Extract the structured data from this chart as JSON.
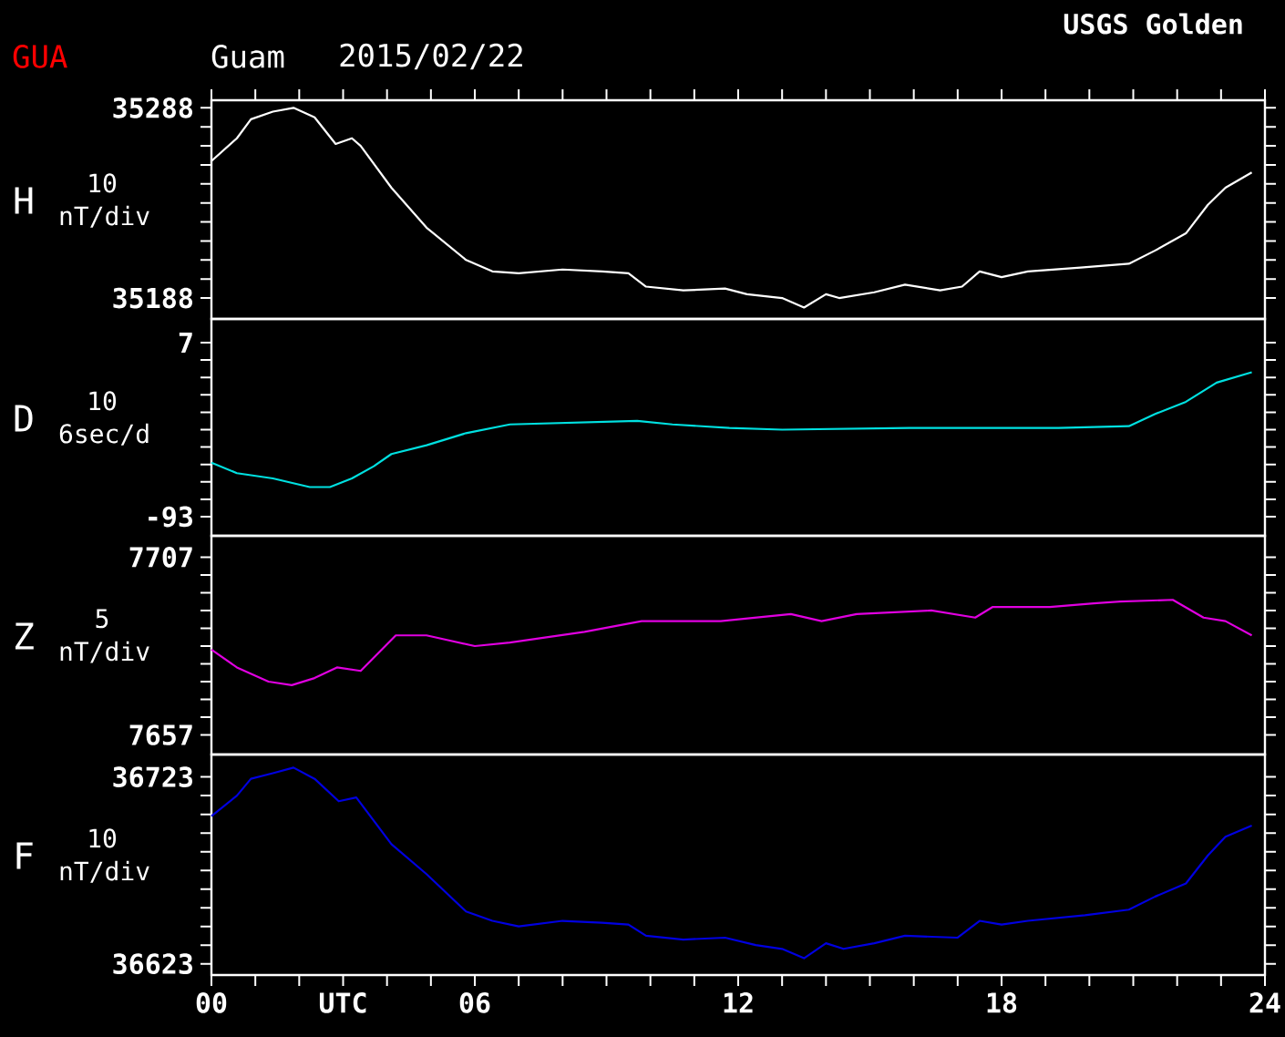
{
  "chart_data": [
    {
      "type": "other",
      "title": "Guam",
      "subtitle": "2015/02/22",
      "annotations": [
        "GUA",
        "USGS Golden"
      ]
    },
    {
      "type": "line",
      "title": "H",
      "ylabel": "10 nT/div",
      "xlim": [
        0,
        24
      ],
      "ylim": [
        35177,
        35292
      ],
      "tick_labels": "y",
      "xticks": [
        {
          "value": 0,
          "label": null
        },
        {
          "value": 1,
          "label": null
        },
        {
          "value": 2,
          "label": null
        },
        {
          "value": 3,
          "label": null
        },
        {
          "value": 4,
          "label": null
        },
        {
          "value": 5,
          "label": null
        },
        {
          "value": 6,
          "label": null
        },
        {
          "value": 7,
          "label": null
        },
        {
          "value": 8,
          "label": null
        },
        {
          "value": 9,
          "label": null
        },
        {
          "value": 10,
          "label": null
        },
        {
          "value": 11,
          "label": null
        },
        {
          "value": 12,
          "label": null
        },
        {
          "value": 13,
          "label": null
        },
        {
          "value": 14,
          "label": null
        },
        {
          "value": 15,
          "label": null
        },
        {
          "value": 16,
          "label": null
        },
        {
          "value": 17,
          "label": null
        },
        {
          "value": 18,
          "label": null
        },
        {
          "value": 19,
          "label": null
        },
        {
          "value": 20,
          "label": null
        },
        {
          "value": 21,
          "label": null
        },
        {
          "value": 22,
          "label": null
        },
        {
          "value": 23,
          "label": null
        },
        {
          "value": 24,
          "label": null
        }
      ],
      "yticks": [
        35188,
        {
          "value": 35198,
          "label": null
        },
        {
          "value": 35208,
          "label": null
        },
        {
          "value": 35218,
          "label": null
        },
        {
          "value": 35228,
          "label": null
        },
        {
          "value": 35238,
          "label": null
        },
        {
          "value": 35248,
          "label": null
        },
        {
          "value": 35258,
          "label": null
        },
        {
          "value": 35268,
          "label": null
        },
        {
          "value": 35278,
          "label": null
        },
        35288
      ],
      "x": [
        0,
        0.58,
        0.9,
        1.4,
        1.87,
        2.35,
        2.83,
        3.2,
        3.4,
        4.1,
        4.9,
        5.8,
        6.4,
        7.0,
        8.0,
        8.9,
        9.5,
        9.9,
        10.75,
        11.7,
        12.2,
        13.0,
        13.5,
        14.0,
        14.3,
        15.1,
        15.8,
        16.6,
        17.1,
        17.5,
        18.0,
        18.6,
        19.8,
        20.9,
        21.5,
        22.2,
        22.7,
        23.1,
        23.7
      ],
      "series": [
        {
          "color": "#ffffff",
          "values": [
            35260,
            35272,
            35282,
            35286,
            35288,
            35283,
            35269,
            35272,
            35268,
            35246,
            35225,
            35208,
            35202,
            35201,
            35203,
            35202,
            35201,
            35194,
            35192,
            35193,
            35190,
            35188,
            35183,
            35190,
            35188,
            35191,
            35195,
            35192,
            35194,
            35202,
            35199,
            35202,
            35204,
            35206,
            35213,
            35222,
            35237,
            35246,
            35254
          ]
        }
      ]
    },
    {
      "type": "line",
      "title": "D",
      "ylabel": "10 6sec/d",
      "xlim": [
        0,
        24
      ],
      "ylim": [
        -104,
        20.6
      ],
      "tick_labels": "y",
      "yticks": [
        -93,
        {
          "value": -83,
          "label": null
        },
        {
          "value": -73,
          "label": null
        },
        {
          "value": -63,
          "label": null
        },
        {
          "value": -53,
          "label": null
        },
        {
          "value": -43,
          "label": null
        },
        {
          "value": -33,
          "label": null
        },
        {
          "value": -23,
          "label": null
        },
        {
          "value": -13,
          "label": null
        },
        {
          "value": -3,
          "label": null
        },
        7
      ],
      "x": [
        0,
        0.58,
        1.4,
        2.24,
        2.7,
        3.2,
        3.7,
        4.1,
        4.9,
        5.8,
        6.8,
        9.7,
        10.5,
        11.8,
        13.0,
        15.9,
        19.3,
        20.9,
        21.5,
        22.2,
        22.9,
        23.7
      ],
      "series": [
        {
          "color": "#00e0e0",
          "values": [
            -62,
            -68,
            -71,
            -76,
            -76,
            -71,
            -64,
            -57,
            -52,
            -45,
            -40,
            -38,
            -40,
            -42,
            -43,
            -42,
            -42,
            -41,
            -34,
            -27,
            -16,
            -10
          ]
        }
      ]
    },
    {
      "type": "line",
      "title": "Z",
      "ylabel": "5 nT/div",
      "xlim": [
        0,
        24
      ],
      "ylim": [
        7651.5,
        7713
      ],
      "tick_labels": "y",
      "yticks": [
        7657,
        {
          "value": 7662,
          "label": null
        },
        {
          "value": 7667,
          "label": null
        },
        {
          "value": 7672,
          "label": null
        },
        {
          "value": 7677,
          "label": null
        },
        {
          "value": 7682,
          "label": null
        },
        {
          "value": 7687,
          "label": null
        },
        {
          "value": 7692,
          "label": null
        },
        {
          "value": 7697,
          "label": null
        },
        {
          "value": 7702,
          "label": null
        },
        7707
      ],
      "x": [
        0,
        0.58,
        1.3,
        1.83,
        2.35,
        2.86,
        3.4,
        4.2,
        4.9,
        6.0,
        6.8,
        8.5,
        9.8,
        11.6,
        13.2,
        13.9,
        14.7,
        16.4,
        17.4,
        17.8,
        19.1,
        20.1,
        20.7,
        21.9,
        22.6,
        23.1,
        23.7
      ],
      "series": [
        {
          "color": "#e000e0",
          "values": [
            7681,
            7676,
            7672,
            7671,
            7673,
            7676,
            7675,
            7685,
            7685,
            7682,
            7683,
            7686,
            7689,
            7689,
            7691,
            7689,
            7691,
            7692,
            7690,
            7693,
            7693,
            7694,
            7694.5,
            7695,
            7690,
            7689,
            7685
          ]
        }
      ]
    },
    {
      "type": "line",
      "title": "F",
      "ylabel": "10 nT/div",
      "xlim": [
        0,
        24
      ],
      "ylim": [
        36617,
        36735
      ],
      "xticks": [
        {
          "value": 0,
          "label": "00"
        },
        {
          "value": 1,
          "label": null
        },
        {
          "value": 2,
          "label": null
        },
        {
          "value": 3,
          "label": "UTC"
        },
        {
          "value": 4,
          "label": null
        },
        {
          "value": 5,
          "label": null
        },
        {
          "value": 6,
          "label": "06"
        },
        {
          "value": 7,
          "label": null
        },
        {
          "value": 8,
          "label": null
        },
        {
          "value": 9,
          "label": null
        },
        {
          "value": 10,
          "label": null
        },
        {
          "value": 11,
          "label": null
        },
        12,
        {
          "value": 13,
          "label": null
        },
        {
          "value": 14,
          "label": null
        },
        {
          "value": 15,
          "label": null
        },
        {
          "value": 16,
          "label": null
        },
        {
          "value": 17,
          "label": null
        },
        18,
        {
          "value": 19,
          "label": null
        },
        {
          "value": 20,
          "label": null
        },
        {
          "value": 21,
          "label": null
        },
        {
          "value": 22,
          "label": null
        },
        {
          "value": 23,
          "label": null
        },
        24
      ],
      "yticks": [
        36623,
        {
          "value": 36633,
          "label": null
        },
        {
          "value": 36643,
          "label": null
        },
        {
          "value": 36653,
          "label": null
        },
        {
          "value": 36663,
          "label": null
        },
        {
          "value": 36673,
          "label": null
        },
        {
          "value": 36683,
          "label": null
        },
        {
          "value": 36693,
          "label": null
        },
        {
          "value": 36703,
          "label": null
        },
        {
          "value": 36713,
          "label": null
        },
        36723
      ],
      "x": [
        0,
        0.58,
        0.9,
        1.4,
        1.87,
        2.35,
        2.9,
        3.3,
        4.1,
        4.9,
        5.8,
        6.4,
        7.0,
        8.0,
        8.9,
        9.5,
        9.9,
        10.75,
        11.7,
        12.4,
        13.0,
        13.5,
        14.0,
        14.4,
        15.1,
        15.8,
        17.0,
        17.5,
        18.0,
        18.6,
        19.9,
        20.9,
        21.5,
        22.2,
        22.7,
        23.1,
        23.7
      ],
      "series": [
        {
          "color": "#0000e0",
          "values": [
            36702,
            36713,
            36722,
            36725,
            36728,
            36722,
            36710,
            36712,
            36687,
            36671,
            36651,
            36646,
            36643,
            36646,
            36645,
            36644,
            36638,
            36636,
            36637,
            36633,
            36631,
            36626,
            36634,
            36631,
            36634,
            36638,
            36637,
            36646,
            36644,
            36646,
            36649,
            36652,
            36659,
            36666,
            36681,
            36691,
            36697
          ]
        }
      ]
    }
  ]
}
